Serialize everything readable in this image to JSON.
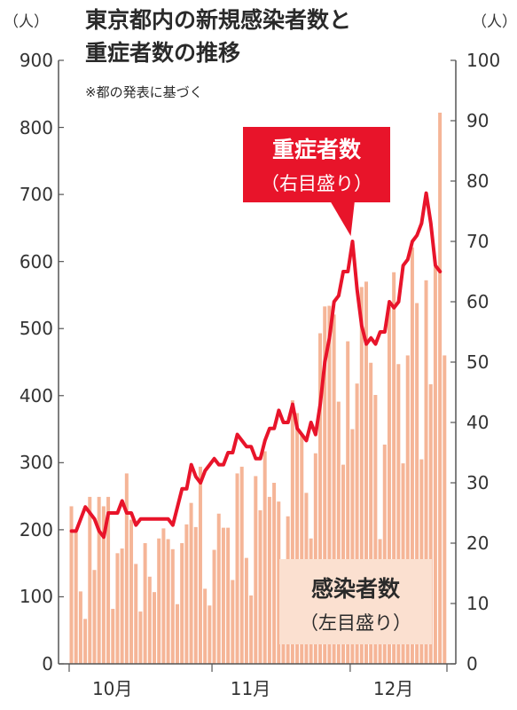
{
  "title_line1": "東京都内の新規感染者数と",
  "title_line2": "重症者数の推移",
  "note": "※都の発表に基づく",
  "unit_left": "（人）",
  "unit_right": "（人）",
  "label_severe": "重症者数",
  "label_severe_axis": "（右目盛り）",
  "label_cases": "感染者数",
  "label_cases_axis": "（左目盛り）",
  "colors": {
    "bars": "#f5b597",
    "line": "#e8142a",
    "axis": "#555555"
  },
  "chart_data": {
    "type": "bar+line",
    "title": "東京都内の新規感染者数と重症者数の推移",
    "x_labels": [
      "10月",
      "11月",
      "12月"
    ],
    "x_label_day_index": [
      10,
      40,
      71
    ],
    "left_axis": {
      "label": "（人）",
      "ylim": [
        0,
        900
      ],
      "ticks": [
        "0",
        "100",
        "200",
        "300",
        "400",
        "500",
        "600",
        "700",
        "800",
        "900"
      ]
    },
    "right_axis": {
      "label": "（人）",
      "ylim": [
        0,
        100
      ],
      "ticks": [
        "0",
        "10",
        "20",
        "30",
        "40",
        "50",
        "60",
        "70",
        "80",
        "90",
        "100"
      ]
    },
    "series": [
      {
        "name": "感染者数",
        "axis": "left",
        "type": "bar",
        "values": [
          235,
          196,
          108,
          67,
          249,
          140,
          249,
          235,
          249,
          82,
          165,
          172,
          284,
          215,
          149,
          78,
          180,
          130,
          107,
          187,
          202,
          186,
          171,
          89,
          180,
          208,
          240,
          204,
          294,
          112,
          87,
          170,
          224,
          203,
          203,
          125,
          284,
          294,
          158,
          102,
          280,
          229,
          317,
          249,
          270,
          242,
          124,
          220,
          393,
          374,
          341,
          255,
          187,
          314,
          493,
          533,
          534,
          521,
          391,
          297,
          481,
          350,
          418,
          562,
          570,
          449,
          401,
          186,
          327,
          532,
          584,
          447,
          299,
          460,
          621,
          538,
          305,
          572,
          417,
          592,
          822,
          460
        ]
      },
      {
        "name": "重症者数",
        "axis": "right",
        "type": "line",
        "values": [
          22,
          22,
          24,
          26,
          25,
          24,
          22,
          21,
          25,
          25,
          25,
          27,
          25,
          25,
          23,
          24,
          24,
          24,
          24,
          24,
          24,
          24,
          23,
          26,
          29,
          29,
          33,
          31,
          30,
          32,
          33,
          34,
          33,
          33,
          35,
          35,
          38,
          37,
          36,
          36,
          34,
          34,
          37,
          39,
          39,
          42,
          40,
          40,
          43,
          39,
          38,
          37,
          40,
          38,
          43,
          50,
          54,
          60,
          61,
          65,
          65,
          70,
          62,
          56,
          53,
          54,
          53,
          55,
          55,
          60,
          59,
          60,
          66,
          67,
          70,
          71,
          73,
          78,
          73,
          66,
          65
        ]
      }
    ]
  }
}
